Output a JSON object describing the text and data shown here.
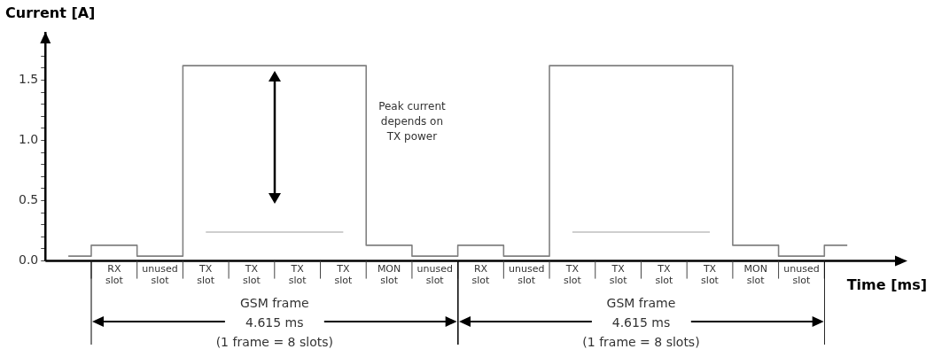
{
  "chart_data": {
    "type": "step",
    "xlabel": "Time [ms]",
    "ylabel": "Current [A]",
    "categories": [
      null,
      "RX\nslot",
      "unused\nslot",
      "TX\nslot",
      "TX\nslot",
      "TX\nslot",
      "TX\nslot",
      "MON\nslot",
      "unused\nslot",
      "RX\nslot",
      "unused\nslot",
      "TX\nslot",
      "TX\nslot",
      "TX\nslot",
      "TX\nslot",
      "MON\nslot",
      "unused\nslot",
      null
    ],
    "ylim": [
      0,
      1.9
    ],
    "yticks": [
      {
        "value": 0,
        "label": "0.0"
      },
      {
        "value": 0.1,
        "label": null
      },
      {
        "value": 0.2,
        "label": null
      },
      {
        "value": 0.3,
        "label": null
      },
      {
        "value": 0.4,
        "label": null
      },
      {
        "value": 0.5,
        "label": "0.5"
      },
      {
        "value": 0.6,
        "label": null
      },
      {
        "value": 0.7,
        "label": null
      },
      {
        "value": 0.8,
        "label": null
      },
      {
        "value": 0.9,
        "label": null
      },
      {
        "value": 1,
        "label": "1.0"
      },
      {
        "value": 1.1,
        "label": null
      },
      {
        "value": 1.2,
        "label": null
      },
      {
        "value": 1.3,
        "label": null
      },
      {
        "value": 1.4,
        "label": null
      },
      {
        "value": 1.5,
        "label": "1.5"
      },
      {
        "value": 1.6,
        "label": null
      },
      {
        "value": 1.7,
        "label": null
      }
    ],
    "grid": false,
    "legend": false,
    "marker": "none",
    "line_style": "solid",
    "series": [
      {
        "color": "#808080",
        "values": [
          0.04,
          0.13,
          0.04,
          1.62,
          1.62,
          1.62,
          1.62,
          0.13,
          0.04,
          0.13,
          0.04,
          1.62,
          1.62,
          1.62,
          1.62,
          0.13,
          0.04,
          0.13
        ]
      },
      {
        "color": "#c0c0c0",
        "values": [
          null,
          null,
          null,
          0.24,
          0.24,
          0.24,
          0.24,
          null,
          null,
          null,
          null,
          0.24,
          0.24,
          0.24,
          0.24,
          null,
          null,
          null
        ]
      }
    ],
    "annotations": [
      "Peak current\ndepends on\nTX power",
      "GSM frame\n4.615 ms\n(1 frame = 8 slots)",
      "GSM frame\n4.615 ms\n(1 frame = 8 slots)"
    ]
  }
}
